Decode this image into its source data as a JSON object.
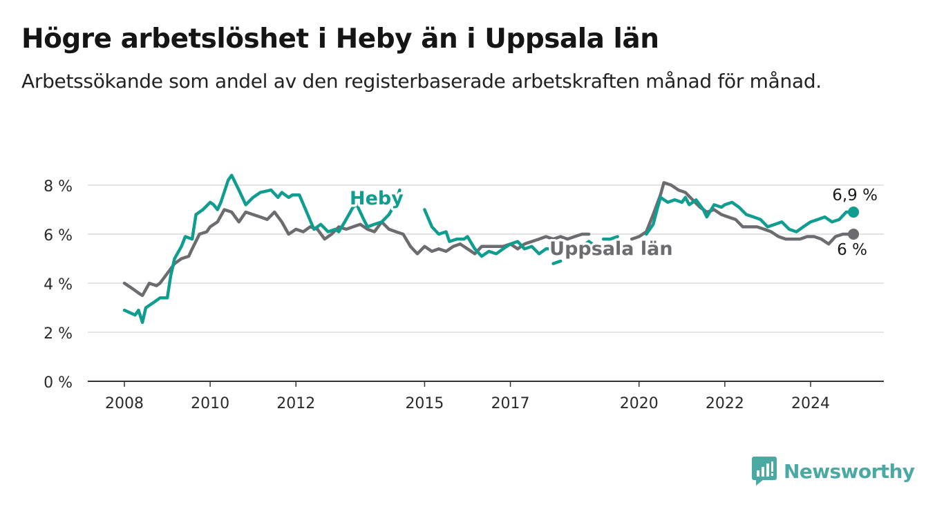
{
  "title": "Högre arbetslöshet i Heby än i Uppsala län",
  "subtitle": "Arbetssökande som andel av den registerbaserade arbetskraften månad för månad.",
  "brand": "Newsworthy",
  "chart_data": {
    "type": "line",
    "y_unit": "%",
    "ylim": [
      0,
      8.2
    ],
    "y_ticks": [
      0,
      2,
      4,
      6,
      8
    ],
    "y_tick_labels": [
      "0 %",
      "2 %",
      "4 %",
      "6 %",
      "8 %"
    ],
    "x_ticks": [
      2008,
      2010,
      2012,
      2015,
      2017,
      2020,
      2022,
      2024
    ],
    "x_tick_labels": [
      "2008",
      "2010",
      "2012",
      "2015",
      "2017",
      "2020",
      "2022",
      "2024"
    ],
    "grid": true,
    "end_labels": [
      "6,9 %",
      "6 %"
    ],
    "series": [
      {
        "name": "Heby",
        "color": "#0f9d8f",
        "points": [
          [
            2008.0,
            2.9
          ],
          [
            2008.25,
            2.7
          ],
          [
            2008.33,
            2.9
          ],
          [
            2008.42,
            2.4
          ],
          [
            2008.5,
            3.0
          ],
          [
            2008.67,
            3.2
          ],
          [
            2008.83,
            3.4
          ],
          [
            2009.0,
            3.4
          ],
          [
            2009.08,
            4.3
          ],
          [
            2009.17,
            5.0
          ],
          [
            2009.33,
            5.5
          ],
          [
            2009.42,
            5.9
          ],
          [
            2009.58,
            5.8
          ],
          [
            2009.67,
            6.8
          ],
          [
            2009.83,
            7.0
          ],
          [
            2010.0,
            7.3
          ],
          [
            2010.08,
            7.2
          ],
          [
            2010.17,
            7.0
          ],
          [
            2010.25,
            7.3
          ],
          [
            2010.42,
            8.2
          ],
          [
            2010.5,
            8.4
          ],
          [
            2010.67,
            7.8
          ],
          [
            2010.83,
            7.2
          ],
          [
            2011.0,
            7.5
          ],
          [
            2011.17,
            7.7
          ],
          [
            2011.42,
            7.8
          ],
          [
            2011.58,
            7.5
          ],
          [
            2011.67,
            7.7
          ],
          [
            2011.83,
            7.5
          ],
          [
            2011.92,
            7.6
          ],
          [
            2012.08,
            7.6
          ],
          [
            2012.25,
            6.9
          ],
          [
            2012.42,
            6.2
          ],
          [
            2012.58,
            6.4
          ],
          [
            2012.75,
            6.1
          ],
          [
            2012.92,
            6.2
          ],
          [
            2013.0,
            6.1
          ],
          [
            2013.17,
            6.6
          ],
          [
            2013.33,
            7.1
          ],
          [
            2013.42,
            7.2
          ],
          [
            2013.5,
            6.9
          ],
          [
            2013.58,
            6.6
          ],
          [
            2013.67,
            6.3
          ],
          [
            2013.83,
            6.4
          ],
          [
            2014.0,
            6.5
          ],
          [
            2014.17,
            6.8
          ],
          [
            2014.33,
            7.3
          ],
          [
            2014.42,
            7.8
          ]
        ],
        "points_2": [
          [
            2015.0,
            7.0
          ],
          [
            2015.17,
            6.3
          ],
          [
            2015.33,
            6.0
          ],
          [
            2015.5,
            6.1
          ],
          [
            2015.58,
            5.7
          ],
          [
            2015.75,
            5.8
          ],
          [
            2015.92,
            5.8
          ],
          [
            2016.0,
            5.9
          ],
          [
            2016.17,
            5.4
          ],
          [
            2016.33,
            5.1
          ],
          [
            2016.5,
            5.3
          ],
          [
            2016.67,
            5.2
          ],
          [
            2016.83,
            5.4
          ],
          [
            2017.0,
            5.6
          ],
          [
            2017.17,
            5.7
          ],
          [
            2017.33,
            5.4
          ],
          [
            2017.5,
            5.5
          ],
          [
            2017.67,
            5.2
          ],
          [
            2017.83,
            5.4
          ],
          [
            2018.0,
            5.4
          ],
          [
            2018.17,
            5.5
          ],
          [
            2018.33,
            5.4
          ],
          [
            2018.5,
            5.3
          ],
          [
            2018.67,
            5.5
          ],
          [
            2018.83,
            5.7
          ],
          [
            2019.0,
            5.5
          ]
        ],
        "points_3": [
          [
            2020.17,
            6.0
          ],
          [
            2020.33,
            6.4
          ],
          [
            2020.42,
            7.0
          ],
          [
            2020.5,
            7.5
          ],
          [
            2020.67,
            7.3
          ],
          [
            2020.83,
            7.4
          ],
          [
            2021.0,
            7.3
          ],
          [
            2021.08,
            7.5
          ],
          [
            2021.17,
            7.2
          ],
          [
            2021.33,
            7.4
          ],
          [
            2021.5,
            7.0
          ],
          [
            2021.58,
            6.7
          ],
          [
            2021.75,
            7.2
          ],
          [
            2021.92,
            7.1
          ],
          [
            2022.0,
            7.2
          ],
          [
            2022.17,
            7.3
          ],
          [
            2022.33,
            7.1
          ],
          [
            2022.5,
            6.8
          ],
          [
            2022.67,
            6.7
          ],
          [
            2022.83,
            6.6
          ],
          [
            2023.0,
            6.3
          ],
          [
            2023.17,
            6.4
          ],
          [
            2023.33,
            6.5
          ],
          [
            2023.5,
            6.2
          ],
          [
            2023.67,
            6.1
          ],
          [
            2023.83,
            6.3
          ],
          [
            2024.0,
            6.5
          ],
          [
            2024.17,
            6.6
          ],
          [
            2024.33,
            6.7
          ],
          [
            2024.5,
            6.5
          ],
          [
            2024.67,
            6.6
          ],
          [
            2024.83,
            6.9
          ],
          [
            2025.0,
            6.9
          ]
        ],
        "points_4": [
          [
            2018.0,
            4.8
          ],
          [
            2018.17,
            4.9
          ]
        ],
        "points_5": [
          [
            2019.17,
            5.8
          ],
          [
            2019.33,
            5.8
          ],
          [
            2019.5,
            5.9
          ]
        ]
      },
      {
        "name": "Uppsala län",
        "color": "#6c6b70",
        "points": [
          [
            2008.0,
            4.0
          ],
          [
            2008.17,
            3.8
          ],
          [
            2008.33,
            3.6
          ],
          [
            2008.42,
            3.5
          ],
          [
            2008.58,
            4.0
          ],
          [
            2008.75,
            3.9
          ],
          [
            2008.83,
            4.0
          ],
          [
            2009.0,
            4.4
          ],
          [
            2009.17,
            4.8
          ],
          [
            2009.33,
            5.0
          ],
          [
            2009.5,
            5.1
          ],
          [
            2009.58,
            5.4
          ],
          [
            2009.75,
            6.0
          ],
          [
            2009.92,
            6.1
          ],
          [
            2010.0,
            6.3
          ],
          [
            2010.17,
            6.5
          ],
          [
            2010.33,
            7.0
          ],
          [
            2010.5,
            6.9
          ],
          [
            2010.67,
            6.5
          ],
          [
            2010.83,
            6.9
          ],
          [
            2011.0,
            6.8
          ],
          [
            2011.17,
            6.7
          ],
          [
            2011.33,
            6.6
          ],
          [
            2011.5,
            6.9
          ],
          [
            2011.67,
            6.5
          ],
          [
            2011.83,
            6.0
          ],
          [
            2012.0,
            6.2
          ],
          [
            2012.17,
            6.1
          ],
          [
            2012.33,
            6.3
          ],
          [
            2012.5,
            6.2
          ],
          [
            2012.67,
            5.8
          ],
          [
            2012.83,
            6.0
          ],
          [
            2013.0,
            6.3
          ],
          [
            2013.17,
            6.2
          ],
          [
            2013.33,
            6.3
          ],
          [
            2013.5,
            6.4
          ],
          [
            2013.67,
            6.2
          ],
          [
            2013.83,
            6.1
          ],
          [
            2014.0,
            6.5
          ],
          [
            2014.17,
            6.2
          ],
          [
            2014.33,
            6.1
          ],
          [
            2014.5,
            6.0
          ],
          [
            2014.67,
            5.5
          ],
          [
            2014.83,
            5.2
          ],
          [
            2015.0,
            5.5
          ],
          [
            2015.17,
            5.3
          ],
          [
            2015.33,
            5.4
          ],
          [
            2015.5,
            5.3
          ],
          [
            2015.67,
            5.5
          ],
          [
            2015.83,
            5.6
          ],
          [
            2016.0,
            5.4
          ],
          [
            2016.17,
            5.2
          ],
          [
            2016.33,
            5.5
          ],
          [
            2016.5,
            5.5
          ],
          [
            2016.67,
            5.5
          ],
          [
            2016.83,
            5.5
          ],
          [
            2017.0,
            5.6
          ],
          [
            2017.17,
            5.4
          ],
          [
            2017.33,
            5.6
          ],
          [
            2017.5,
            5.7
          ],
          [
            2017.67,
            5.8
          ],
          [
            2017.83,
            5.9
          ],
          [
            2018.0,
            5.8
          ],
          [
            2018.17,
            5.9
          ],
          [
            2018.33,
            5.8
          ],
          [
            2018.5,
            5.9
          ],
          [
            2018.67,
            6.0
          ],
          [
            2018.83,
            6.0
          ]
        ],
        "points_2": [
          [
            2019.83,
            5.8
          ],
          [
            2020.0,
            5.9
          ],
          [
            2020.17,
            6.1
          ],
          [
            2020.33,
            6.8
          ],
          [
            2020.5,
            7.6
          ],
          [
            2020.58,
            8.1
          ],
          [
            2020.75,
            8.0
          ],
          [
            2020.92,
            7.8
          ],
          [
            2021.08,
            7.7
          ],
          [
            2021.25,
            7.4
          ],
          [
            2021.42,
            7.1
          ],
          [
            2021.58,
            6.9
          ],
          [
            2021.75,
            7.0
          ],
          [
            2021.92,
            6.8
          ],
          [
            2022.08,
            6.7
          ],
          [
            2022.25,
            6.6
          ],
          [
            2022.42,
            6.3
          ],
          [
            2022.58,
            6.3
          ],
          [
            2022.75,
            6.3
          ],
          [
            2022.92,
            6.2
          ],
          [
            2023.08,
            6.1
          ],
          [
            2023.25,
            5.9
          ],
          [
            2023.42,
            5.8
          ],
          [
            2023.58,
            5.8
          ],
          [
            2023.75,
            5.8
          ],
          [
            2023.92,
            5.9
          ],
          [
            2024.08,
            5.9
          ],
          [
            2024.25,
            5.8
          ],
          [
            2024.42,
            5.6
          ],
          [
            2024.58,
            5.9
          ],
          [
            2024.75,
            6.0
          ],
          [
            2024.92,
            6.0
          ],
          [
            2025.0,
            6.0
          ]
        ]
      }
    ]
  }
}
